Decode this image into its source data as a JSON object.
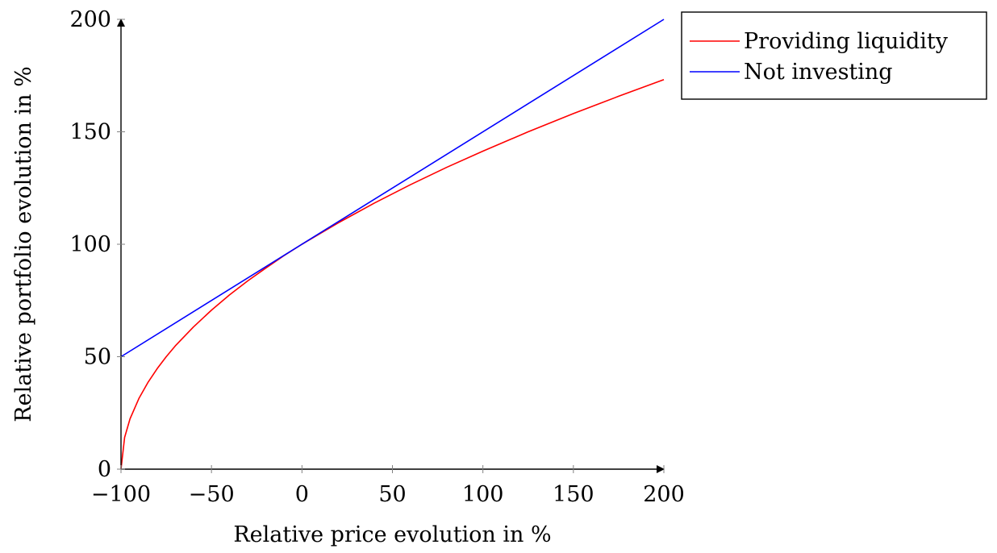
{
  "chart_data": {
    "type": "line",
    "xlabel": "Relative price evolution in %",
    "ylabel": "Relative portfolio evolution in %",
    "xlim": [
      -100,
      200
    ],
    "ylim": [
      0,
      200
    ],
    "x_ticks": [
      -100,
      -50,
      0,
      50,
      100,
      150,
      200
    ],
    "x_tick_labels": [
      "−100",
      "−50",
      "0",
      "50",
      "100",
      "150",
      "200"
    ],
    "y_ticks": [
      0,
      50,
      100,
      150,
      200
    ],
    "y_tick_labels": [
      "0",
      "50",
      "100",
      "150",
      "200"
    ],
    "grid": false,
    "legend_position": "outside-top-right",
    "series": [
      {
        "name": "Providing liquidity",
        "color": "#ff0000",
        "x": [
          -100,
          -98,
          -95,
          -90,
          -85,
          -80,
          -75,
          -70,
          -60,
          -50,
          -40,
          -30,
          -20,
          -10,
          0,
          20,
          40,
          60,
          80,
          100,
          125,
          150,
          175,
          200
        ],
        "y": [
          0,
          14.1,
          22.4,
          31.6,
          38.7,
          44.7,
          50.0,
          54.8,
          63.2,
          70.7,
          77.5,
          83.7,
          89.4,
          94.9,
          100,
          109.5,
          118.3,
          126.5,
          134.2,
          141.4,
          150.0,
          158.1,
          165.8,
          173.2
        ]
      },
      {
        "name": "Not investing",
        "color": "#0000ff",
        "x": [
          -100,
          200
        ],
        "y": [
          50,
          200
        ]
      }
    ]
  }
}
